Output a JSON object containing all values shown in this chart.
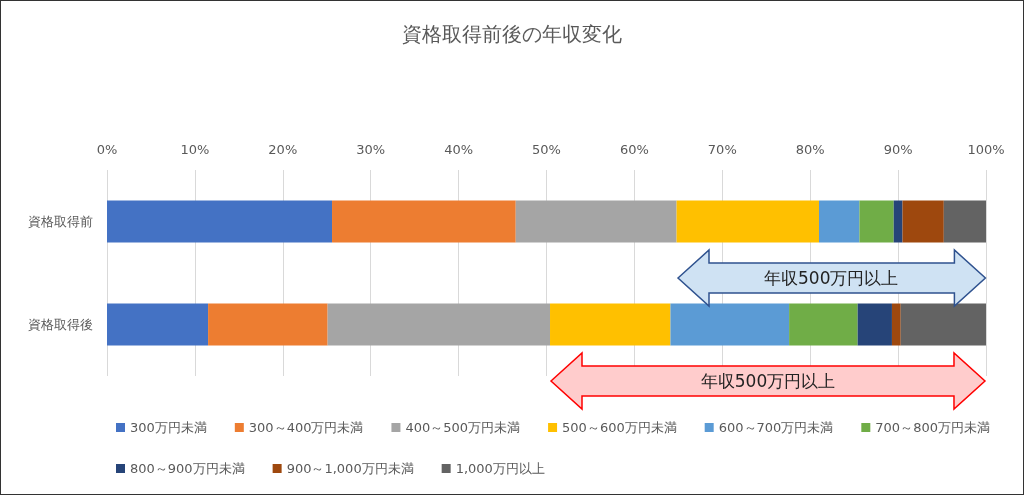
{
  "chart_data": {
    "type": "bar",
    "title": "資格取得前後の年収変化",
    "orientation": "horizontal",
    "stacked": true,
    "categories": [
      "資格取得前",
      "資格取得後"
    ],
    "series": [
      {
        "name": "300万円未満",
        "color": "#4472c4",
        "values": [
          25.6,
          11.5
        ]
      },
      {
        "name": "300～400万円未満",
        "color": "#ed7d31",
        "values": [
          20.9,
          13.6
        ]
      },
      {
        "name": "400～500万円未満",
        "color": "#a5a5a5",
        "values": [
          18.3,
          25.3
        ]
      },
      {
        "name": "500～600万円未満",
        "color": "#ffc000",
        "values": [
          16.2,
          13.7
        ]
      },
      {
        "name": "600～700万円未満",
        "color": "#5b9bd5",
        "values": [
          4.6,
          13.5
        ]
      },
      {
        "name": "700～800万円未満",
        "color": "#70ad47",
        "values": [
          3.9,
          7.8
        ]
      },
      {
        "name": "800～900万円未満",
        "color": "#264478",
        "values": [
          1.0,
          3.9
        ]
      },
      {
        "name": "900～1,000万円未満",
        "color": "#9e480e",
        "values": [
          4.7,
          1.0
        ]
      },
      {
        "name": "1,000万円以上",
        "color": "#636363",
        "values": [
          4.8,
          9.7
        ]
      }
    ],
    "xlim": [
      0,
      100
    ],
    "xticks": [
      {
        "value": 0,
        "label": "0%"
      },
      {
        "value": 10,
        "label": "10%"
      },
      {
        "value": 20,
        "label": "20%"
      },
      {
        "value": 30,
        "label": "30%"
      },
      {
        "value": 40,
        "label": "40%"
      },
      {
        "value": 50,
        "label": "50%"
      },
      {
        "value": 60,
        "label": "60%"
      },
      {
        "value": 70,
        "label": "70%"
      },
      {
        "value": 80,
        "label": "80%"
      },
      {
        "value": 90,
        "label": "90%"
      },
      {
        "value": 100,
        "label": "100%"
      }
    ],
    "grid": "x",
    "legend": "bottom",
    "annotations": [
      "年収500万円以上",
      "年収500万円以上"
    ]
  }
}
